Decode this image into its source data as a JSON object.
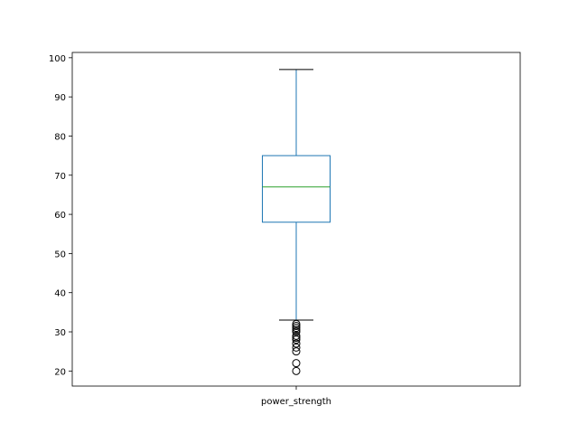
{
  "chart_data": {
    "type": "box",
    "title": "",
    "xlabel": "",
    "ylabel": "",
    "categories": [
      "power_strength"
    ],
    "ylim": [
      16.15,
      101.35
    ],
    "yticks": [
      20,
      30,
      40,
      50,
      60,
      70,
      80,
      90,
      100
    ],
    "grid": false,
    "legend": "none",
    "series": [
      {
        "category": "power_strength",
        "whisker_low": 33,
        "q1": 58,
        "median": 67,
        "q3": 75,
        "whisker_high": 97,
        "outliers": [
          32,
          31.5,
          31,
          30.5,
          30,
          29,
          28.5,
          28,
          27,
          26,
          25,
          22,
          20
        ]
      }
    ],
    "colors": {
      "box": "#1f77b4",
      "whisker": "#1f77b4",
      "median": "#2ca02c",
      "caps": "#000000",
      "outlier": "#000000",
      "frame": "#000000"
    }
  }
}
